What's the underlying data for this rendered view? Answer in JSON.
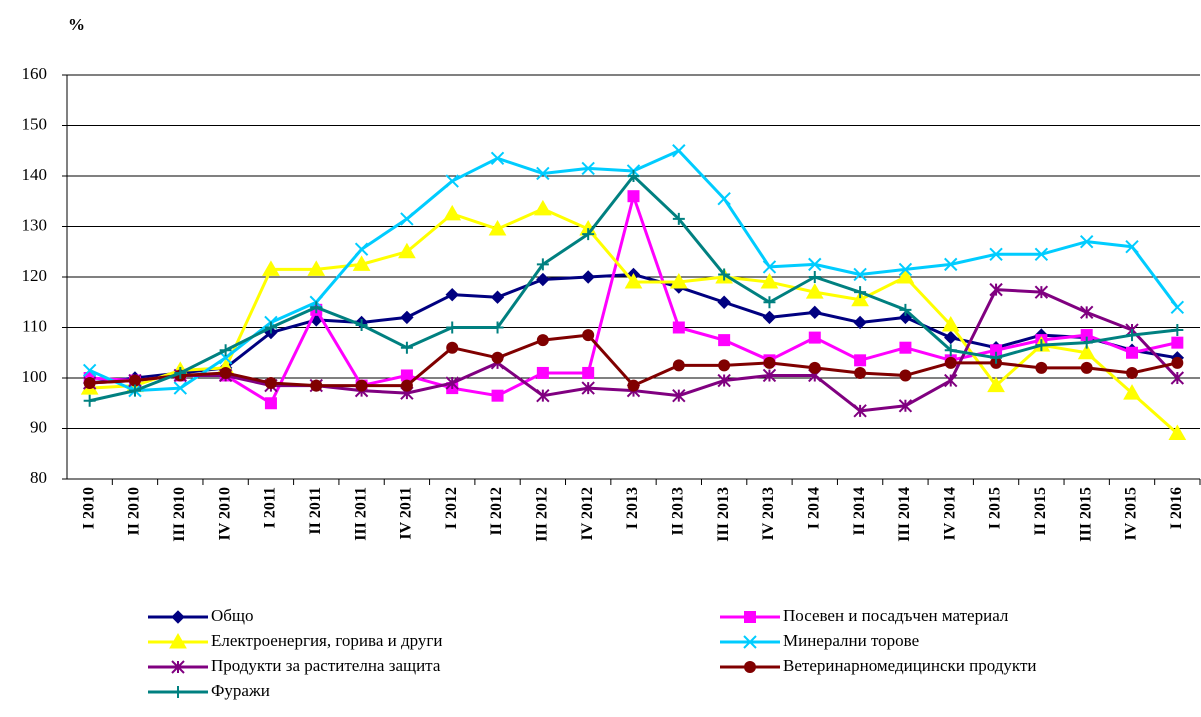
{
  "chart_data": {
    "type": "line",
    "y_axis_label": "%",
    "categories": [
      "I 2010",
      "II 2010",
      "III 2010",
      "IV 2010",
      "I 2011",
      "II 2011",
      "III 2011",
      "IV 2011",
      "I 2012",
      "II 2012",
      "III 2012",
      "IV 2012",
      "I 2013",
      "II 2013",
      "III 2013",
      "IV 2013",
      "I 2014",
      "II 2014",
      "III 2014",
      "IV 2014",
      "I 2015",
      "II 2015",
      "III 2015",
      "IV 2015",
      "I 2016"
    ],
    "ylim": [
      80,
      160
    ],
    "yticks": [
      80,
      90,
      100,
      110,
      120,
      130,
      140,
      150,
      160
    ],
    "grid": true,
    "legend": "bottom",
    "series": [
      {
        "name": "Общо",
        "color": "#000080",
        "marker": "diamond",
        "values": [
          99,
          100,
          101,
          102,
          109,
          111.5,
          111,
          112,
          116.5,
          116,
          119.5,
          120,
          120.5,
          118,
          115,
          112,
          113,
          111,
          112,
          108,
          106,
          108.5,
          108,
          105.5,
          104
        ]
      },
      {
        "name": "Посевен и посадъчен материал",
        "color": "#ff00ff",
        "marker": "square",
        "values": [
          100,
          99.5,
          100.5,
          100.5,
          95,
          113.5,
          98.5,
          100.5,
          98,
          96.5,
          101,
          101,
          136,
          110,
          107.5,
          103.5,
          108,
          103.5,
          106,
          103.5,
          105.5,
          107.5,
          108.5,
          105,
          107
        ]
      },
      {
        "name": "Електроенергия, горива и други",
        "color": "#ffff00",
        "marker": "triangle",
        "values": [
          98,
          98.5,
          101.5,
          102,
          121.5,
          121.5,
          122.5,
          125,
          132.5,
          129.5,
          133.5,
          129.5,
          119,
          119,
          120,
          119,
          117,
          115.5,
          120,
          110.5,
          98.5,
          106.5,
          105,
          97,
          89
        ]
      },
      {
        "name": "Минерални торове",
        "color": "#00ccff",
        "marker": "x",
        "values": [
          101.5,
          97.5,
          98,
          104,
          111,
          115,
          125.5,
          131.5,
          139,
          143.5,
          140.5,
          141.5,
          141,
          145,
          135.5,
          122,
          122.5,
          120.5,
          121.5,
          122.5,
          124.5,
          124.5,
          127,
          126,
          114
        ]
      },
      {
        "name": "Продукти за растителна защита",
        "color": "#800080",
        "marker": "asterisk",
        "values": [
          99,
          99.5,
          100.5,
          100.5,
          98.5,
          98.5,
          97.5,
          97,
          99,
          103,
          96.5,
          98,
          97.5,
          96.5,
          99.5,
          100.5,
          100.5,
          93.5,
          94.5,
          99.5,
          117.5,
          117,
          113,
          109.5,
          100
        ]
      },
      {
        "name": "Ветеринарномедицински продукти",
        "color": "#800000",
        "marker": "circle",
        "values": [
          99,
          99.5,
          100.5,
          101,
          99,
          98.5,
          98.5,
          98.5,
          106,
          104,
          107.5,
          108.5,
          98.5,
          102.5,
          102.5,
          103,
          102,
          101,
          100.5,
          103,
          103,
          102,
          102,
          101,
          103
        ]
      },
      {
        "name": "Фуражи",
        "color": "#008080",
        "marker": "plus",
        "values": [
          95.5,
          97.5,
          101,
          105.5,
          110,
          114,
          110.5,
          106,
          110,
          110,
          122.5,
          128.5,
          140,
          131.5,
          120.5,
          115,
          120,
          117,
          113.5,
          105.5,
          104,
          106.5,
          107,
          108.5,
          109.5
        ]
      }
    ]
  }
}
